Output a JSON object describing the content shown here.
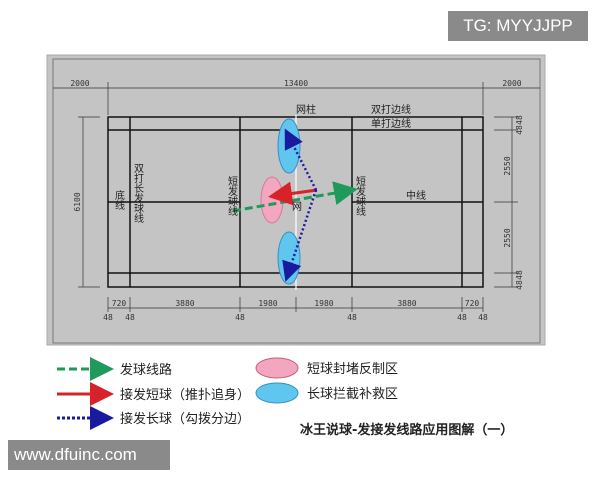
{
  "watermarks": {
    "top": "TG: MYYJJPP",
    "bottom": "www.dfuinc.com"
  },
  "dimensions": {
    "top": [
      "2000",
      "13400",
      "2000"
    ],
    "left": "6100",
    "right": [
      "48",
      "48",
      "2550",
      "2550",
      "48",
      "48"
    ],
    "bottom": [
      "720",
      "3880",
      "1980",
      "1980",
      "3880",
      "720"
    ],
    "bottom_ticks": [
      "48",
      "48",
      "48",
      "48",
      "48",
      "48"
    ]
  },
  "court_labels": {
    "net_post": "网柱",
    "doubles_sideline": "双打边线",
    "singles_sideline": "单打边线",
    "center_line": "中线",
    "back_line": "底线",
    "doubles_long_service_line": "双打长发球线",
    "short_service_line_left": "短发球线",
    "short_service_line_right": "短发球线",
    "net": "网"
  },
  "legend": {
    "serve_route": "发球线路",
    "short_return": "接发短球（推扑追身）",
    "long_return": "接发长球（勾拨分边）",
    "short_zone": "短球封堵反制区",
    "long_zone": "长球拦截补救区"
  },
  "caption": "冰王说球-发接发线路应用图解（一）",
  "colors": {
    "serve": "#1f9a5a",
    "short": "#d8222a",
    "long": "#1a1aa0",
    "pink_zone": "#f4a6bf",
    "blue_zone": "#5ec6ef",
    "panel": "#c4c4c4"
  }
}
